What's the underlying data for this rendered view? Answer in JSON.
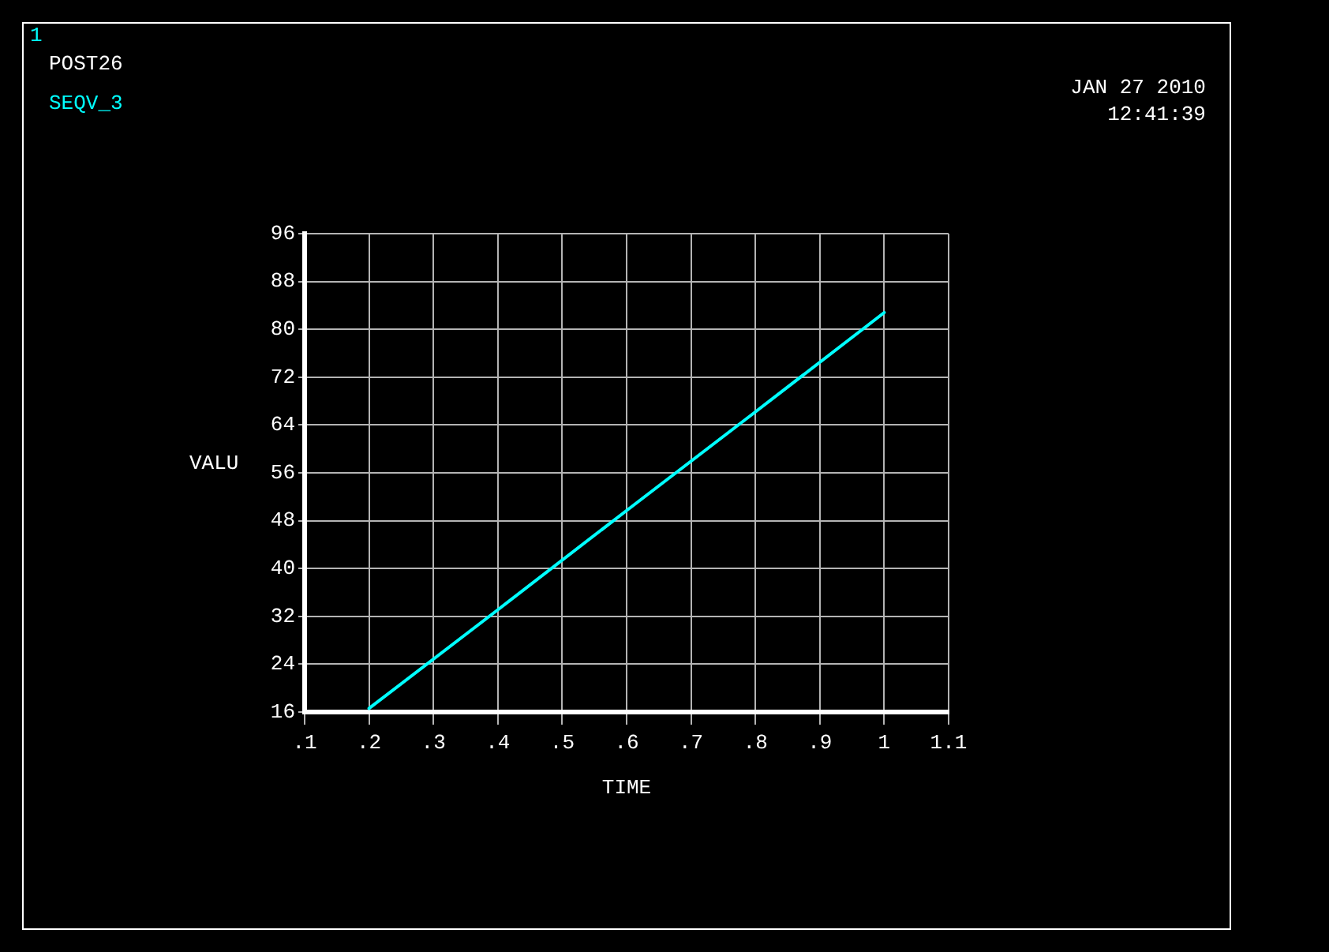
{
  "chart_data": {
    "type": "line",
    "xlabel": "TIME",
    "ylabel": "VALU",
    "annotations": [
      "1",
      "POST26",
      "JAN 27 2010",
      "12:41:39"
    ],
    "x": [
      0.2,
      0.4,
      0.6,
      0.8,
      1.0
    ],
    "series": [
      {
        "name": "SEQV_3",
        "color": "#00ffff",
        "values": [
          16.6,
          33.1,
          49.7,
          66.2,
          82.8
        ]
      }
    ],
    "xlim": [
      0.1,
      1.1
    ],
    "xticks": [
      {
        "value": 0.1,
        "label": ".1"
      },
      {
        "value": 0.2,
        "label": ".2"
      },
      {
        "value": 0.3,
        "label": ".3"
      },
      {
        "value": 0.4,
        "label": ".4"
      },
      {
        "value": 0.5,
        "label": ".5"
      },
      {
        "value": 0.6,
        "label": ".6"
      },
      {
        "value": 0.7,
        "label": ".7"
      },
      {
        "value": 0.8,
        "label": ".8"
      },
      {
        "value": 0.9,
        "label": ".9"
      },
      1,
      1.1
    ],
    "ylim": [
      16,
      96
    ],
    "yticks": [
      16,
      24,
      32,
      40,
      48,
      56,
      64,
      72,
      80,
      88,
      96
    ],
    "grid": true,
    "legend": "top left",
    "marker": "none",
    "line_style": "solid"
  }
}
